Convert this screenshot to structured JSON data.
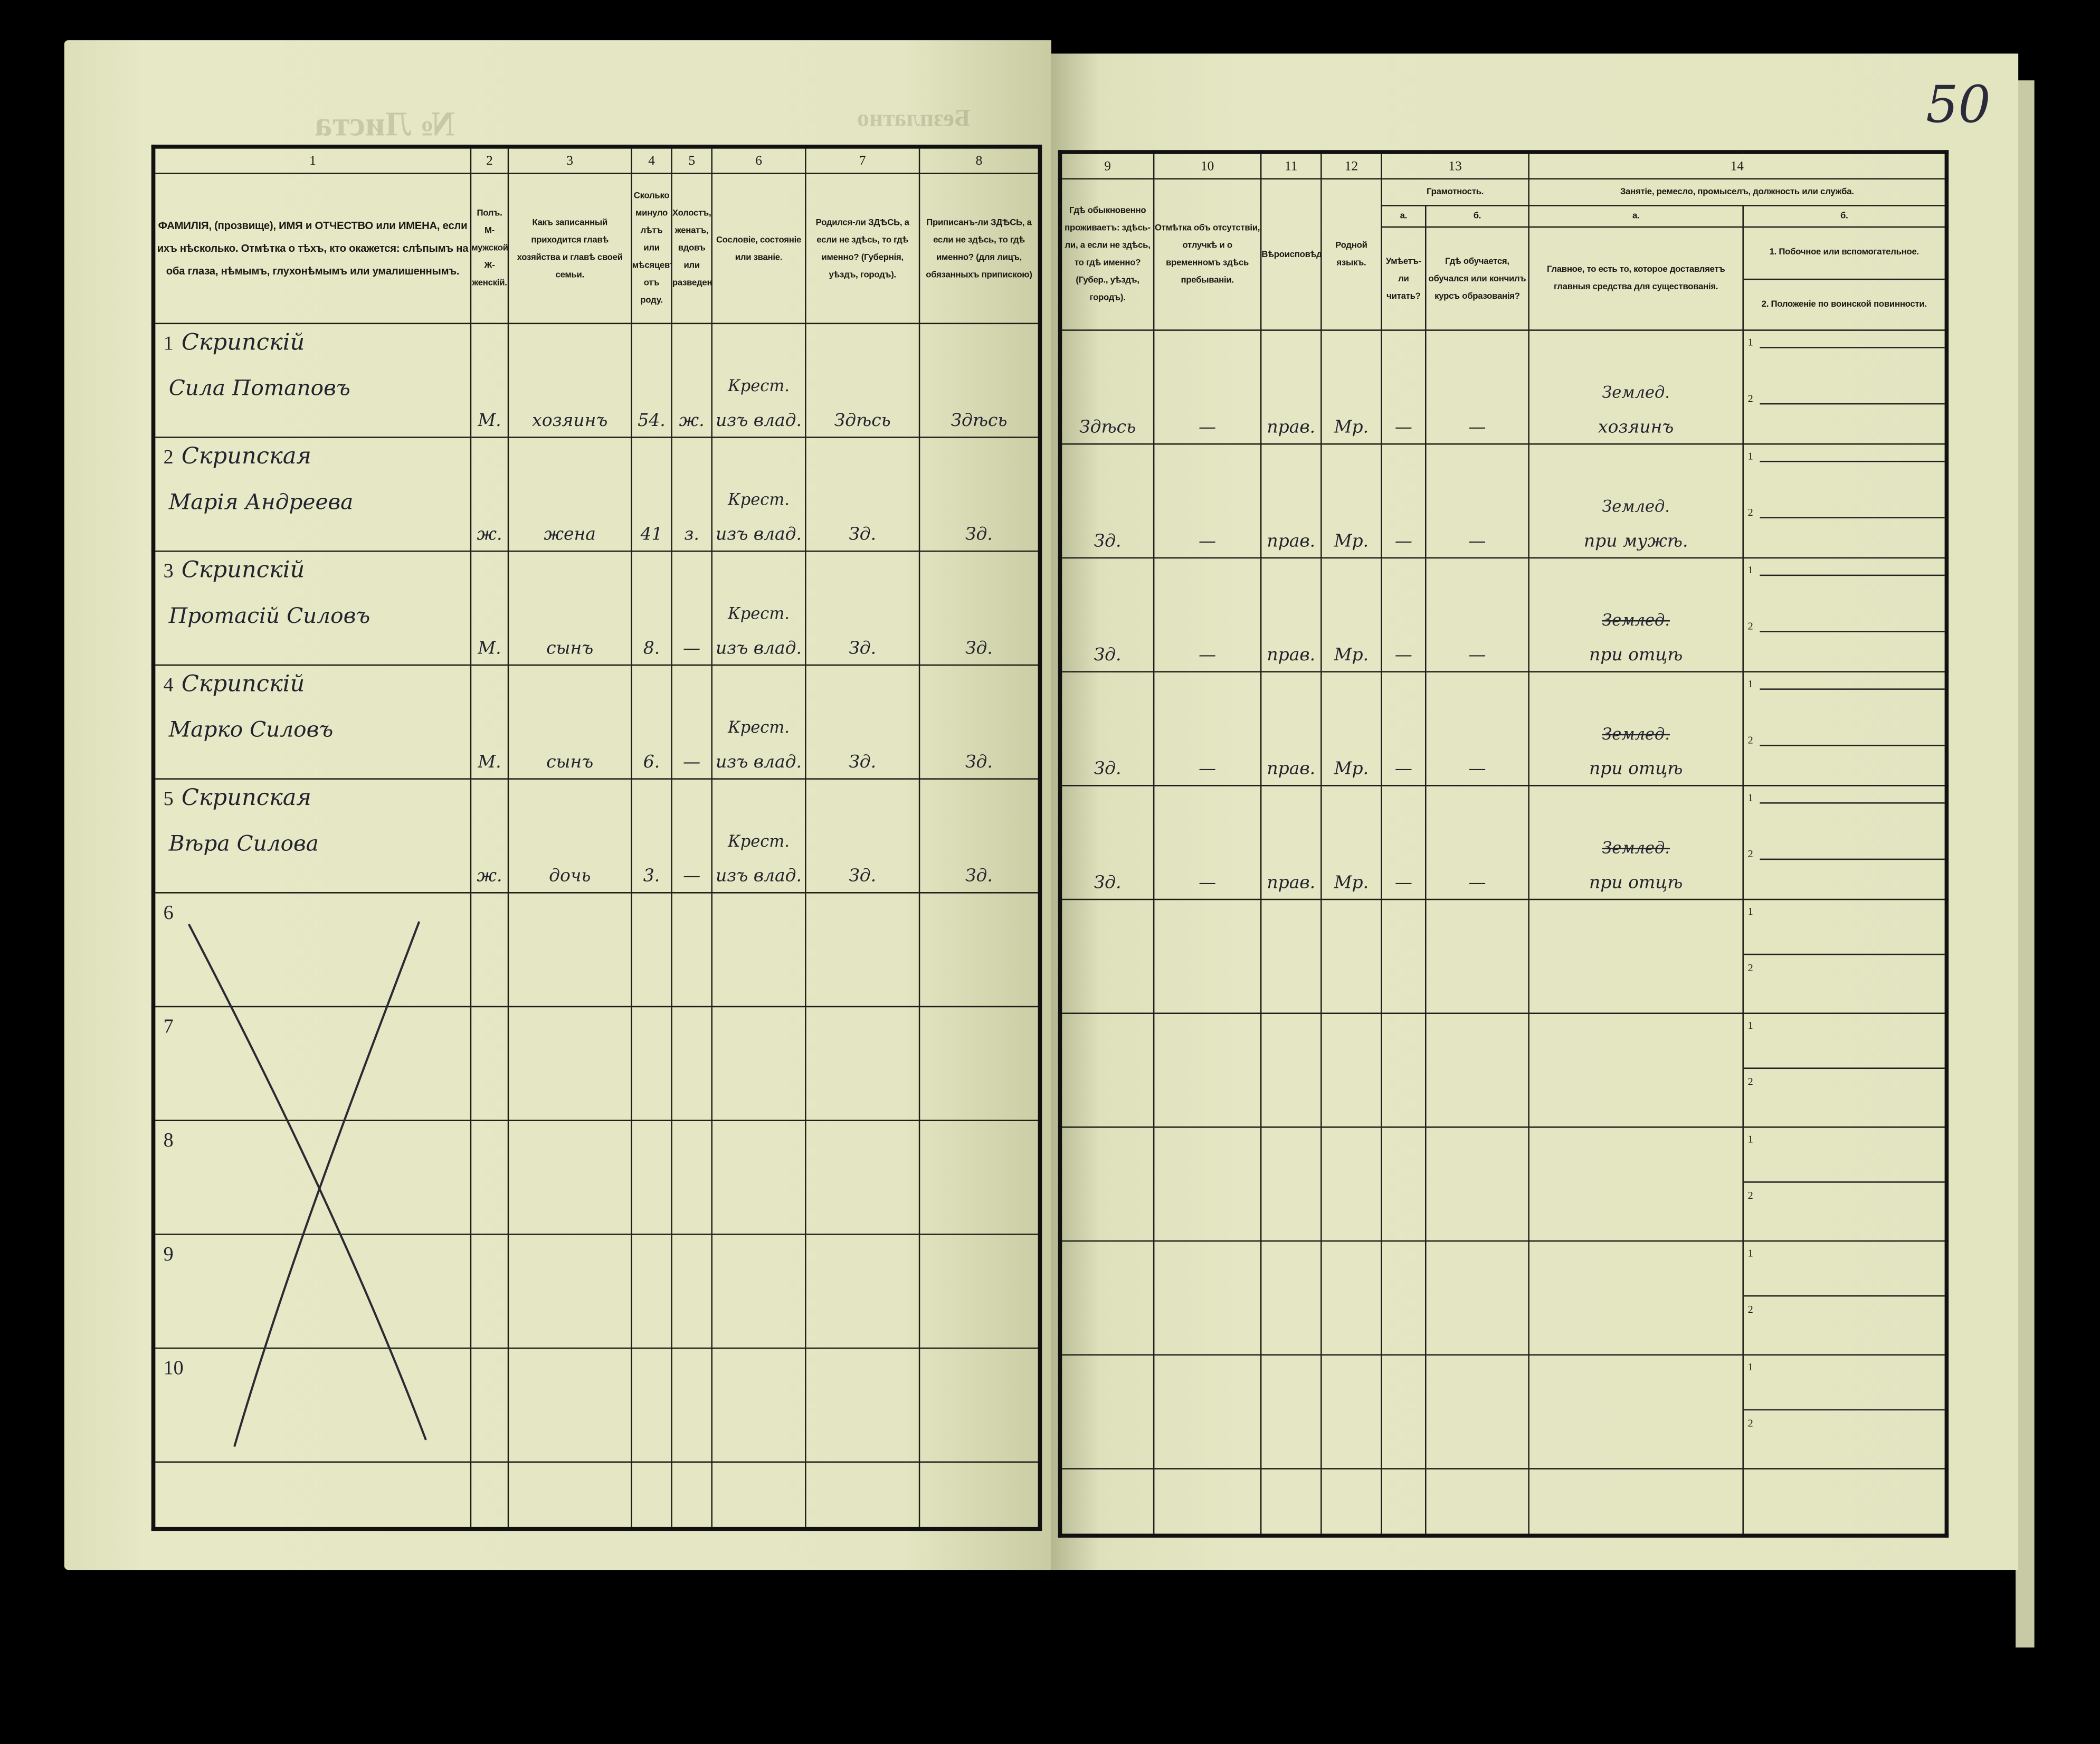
{
  "header": {
    "sheet_no_label": "№ Листа",
    "free_label": "Безплатно",
    "page_number": "50"
  },
  "left": {
    "col_numbers": [
      "1",
      "2",
      "3",
      "4",
      "5",
      "6",
      "7",
      "8"
    ],
    "col_labels": [
      "ФАМИЛІЯ, (прозвище), ИМЯ и ОТЧЕСТВО или ИМЕНА, если ихъ нѣсколько. Отмѣтка о тѣхъ, кто окажется: слѣпымъ на оба глаза, нѣмымъ, глухонѣмымъ или умалишеннымъ.",
      "Полъ. М-мужской. Ж-женскій.",
      "Какъ записанный приходится главѣ хозяйства и главѣ своей семьи.",
      "Сколько минуло лѣтъ или мѣсяцевъ отъ роду.",
      "Холостъ, женатъ, вдовъ или разведенъ.",
      "Сословіе, состояніе или званіе.",
      "Родился-ли ЗДѢСЬ, а если не здѣсь, то гдѣ именно? (Губернія, уѣздъ, городъ).",
      "Приписанъ-ли ЗДѢСЬ, а если не здѣсь, то гдѣ именно? (для лицъ, обязанныхъ припискою)"
    ],
    "rows": [
      {
        "no": "1",
        "surname": "Скрипскій",
        "given": "Сила Потаповъ",
        "sex": "М.",
        "relation": "хозяинъ",
        "age": "54.",
        "marital": "ж.",
        "estate_top": "Крест.",
        "estate": "изъ влад.",
        "born": "Здѣсь",
        "registered": "Здѣсь"
      },
      {
        "no": "2",
        "surname": "Скрипская",
        "given": "Марія Андреева",
        "sex": "ж.",
        "relation": "жена",
        "age": "41",
        "marital": "з.",
        "estate_top": "Крест.",
        "estate": "изъ влад.",
        "born": "Зд.",
        "registered": "Зд."
      },
      {
        "no": "3",
        "surname": "Скрипскій",
        "given": "Протасій Силовъ",
        "sex": "М.",
        "relation": "сынъ",
        "age": "8.",
        "marital": "—",
        "estate_top": "Крест.",
        "estate": "изъ влад.",
        "born": "Зд.",
        "registered": "Зд."
      },
      {
        "no": "4",
        "surname": "Скрипскій",
        "given": "Марко Силовъ",
        "sex": "М.",
        "relation": "сынъ",
        "age": "6.",
        "marital": "—",
        "estate_top": "Крест.",
        "estate": "изъ влад.",
        "born": "Зд.",
        "registered": "Зд."
      },
      {
        "no": "5",
        "surname": "Скрипская",
        "given": "Вѣра Силова",
        "sex": "ж.",
        "relation": "дочь",
        "age": "3.",
        "marital": "—",
        "estate_top": "Крест.",
        "estate": "изъ влад.",
        "born": "Зд.",
        "registered": "Зд."
      },
      {
        "no": "6"
      },
      {
        "no": "7"
      },
      {
        "no": "8"
      },
      {
        "no": "9"
      },
      {
        "no": "10"
      }
    ]
  },
  "right": {
    "col_numbers": [
      "9",
      "10",
      "11",
      "12",
      "13",
      "14"
    ],
    "col_labels": [
      "Гдѣ обыкновенно проживаетъ: здѣсь-ли, а если не здѣсь, то гдѣ именно? (Губер., уѣздъ, городъ).",
      "Отмѣтка объ отсутствіи, отлучкѣ и о временномъ здѣсь пребываніи.",
      "Вѣроисповѣданіе.",
      "Родной языкъ."
    ],
    "literacy": {
      "title": "Грамотность.",
      "a": "а.",
      "b": "б.",
      "a_label": "Умѣетъ-ли читать?",
      "b_label": "Гдѣ обучается, обучался или кончилъ курсъ образованія?"
    },
    "occupation": {
      "title": "Занятіе, ремесло, промыселъ, должность или служба.",
      "a": "а.",
      "b": "б.",
      "a_label": "Главное, то есть то, которое доставляетъ главныя средства для существованія.",
      "b1_label": "1. Побочное или вспомогательное.",
      "b2_label": "2. Положеніе по воинской повинности."
    },
    "sub_marks": [
      "1",
      "2"
    ],
    "rows": [
      {
        "residence": "Здѣсь",
        "absence": "—",
        "religion": "прав.",
        "language": "Мр.",
        "reads": "—",
        "education": "—",
        "occ_top": "Землед.",
        "occ": "хозяинъ",
        "occ_struck": false
      },
      {
        "residence": "Зд.",
        "absence": "—",
        "religion": "прав.",
        "language": "Мр.",
        "reads": "—",
        "education": "—",
        "occ_top": "Землед.",
        "occ": "при мужѣ.",
        "occ_struck": false
      },
      {
        "residence": "Зд.",
        "absence": "—",
        "religion": "прав.",
        "language": "Мр.",
        "reads": "—",
        "education": "—",
        "occ_top": "Землед.",
        "occ": "при отцѣ",
        "occ_struck": true
      },
      {
        "residence": "Зд.",
        "absence": "—",
        "religion": "прав.",
        "language": "Мр.",
        "reads": "—",
        "education": "—",
        "occ_top": "Землед.",
        "occ": "при отцѣ",
        "occ_struck": true
      },
      {
        "residence": "Зд.",
        "absence": "—",
        "religion": "прав.",
        "language": "Мр.",
        "reads": "—",
        "education": "—",
        "occ_top": "Землед.",
        "occ": "при отцѣ",
        "occ_struck": true
      },
      {},
      {},
      {},
      {},
      {}
    ]
  }
}
